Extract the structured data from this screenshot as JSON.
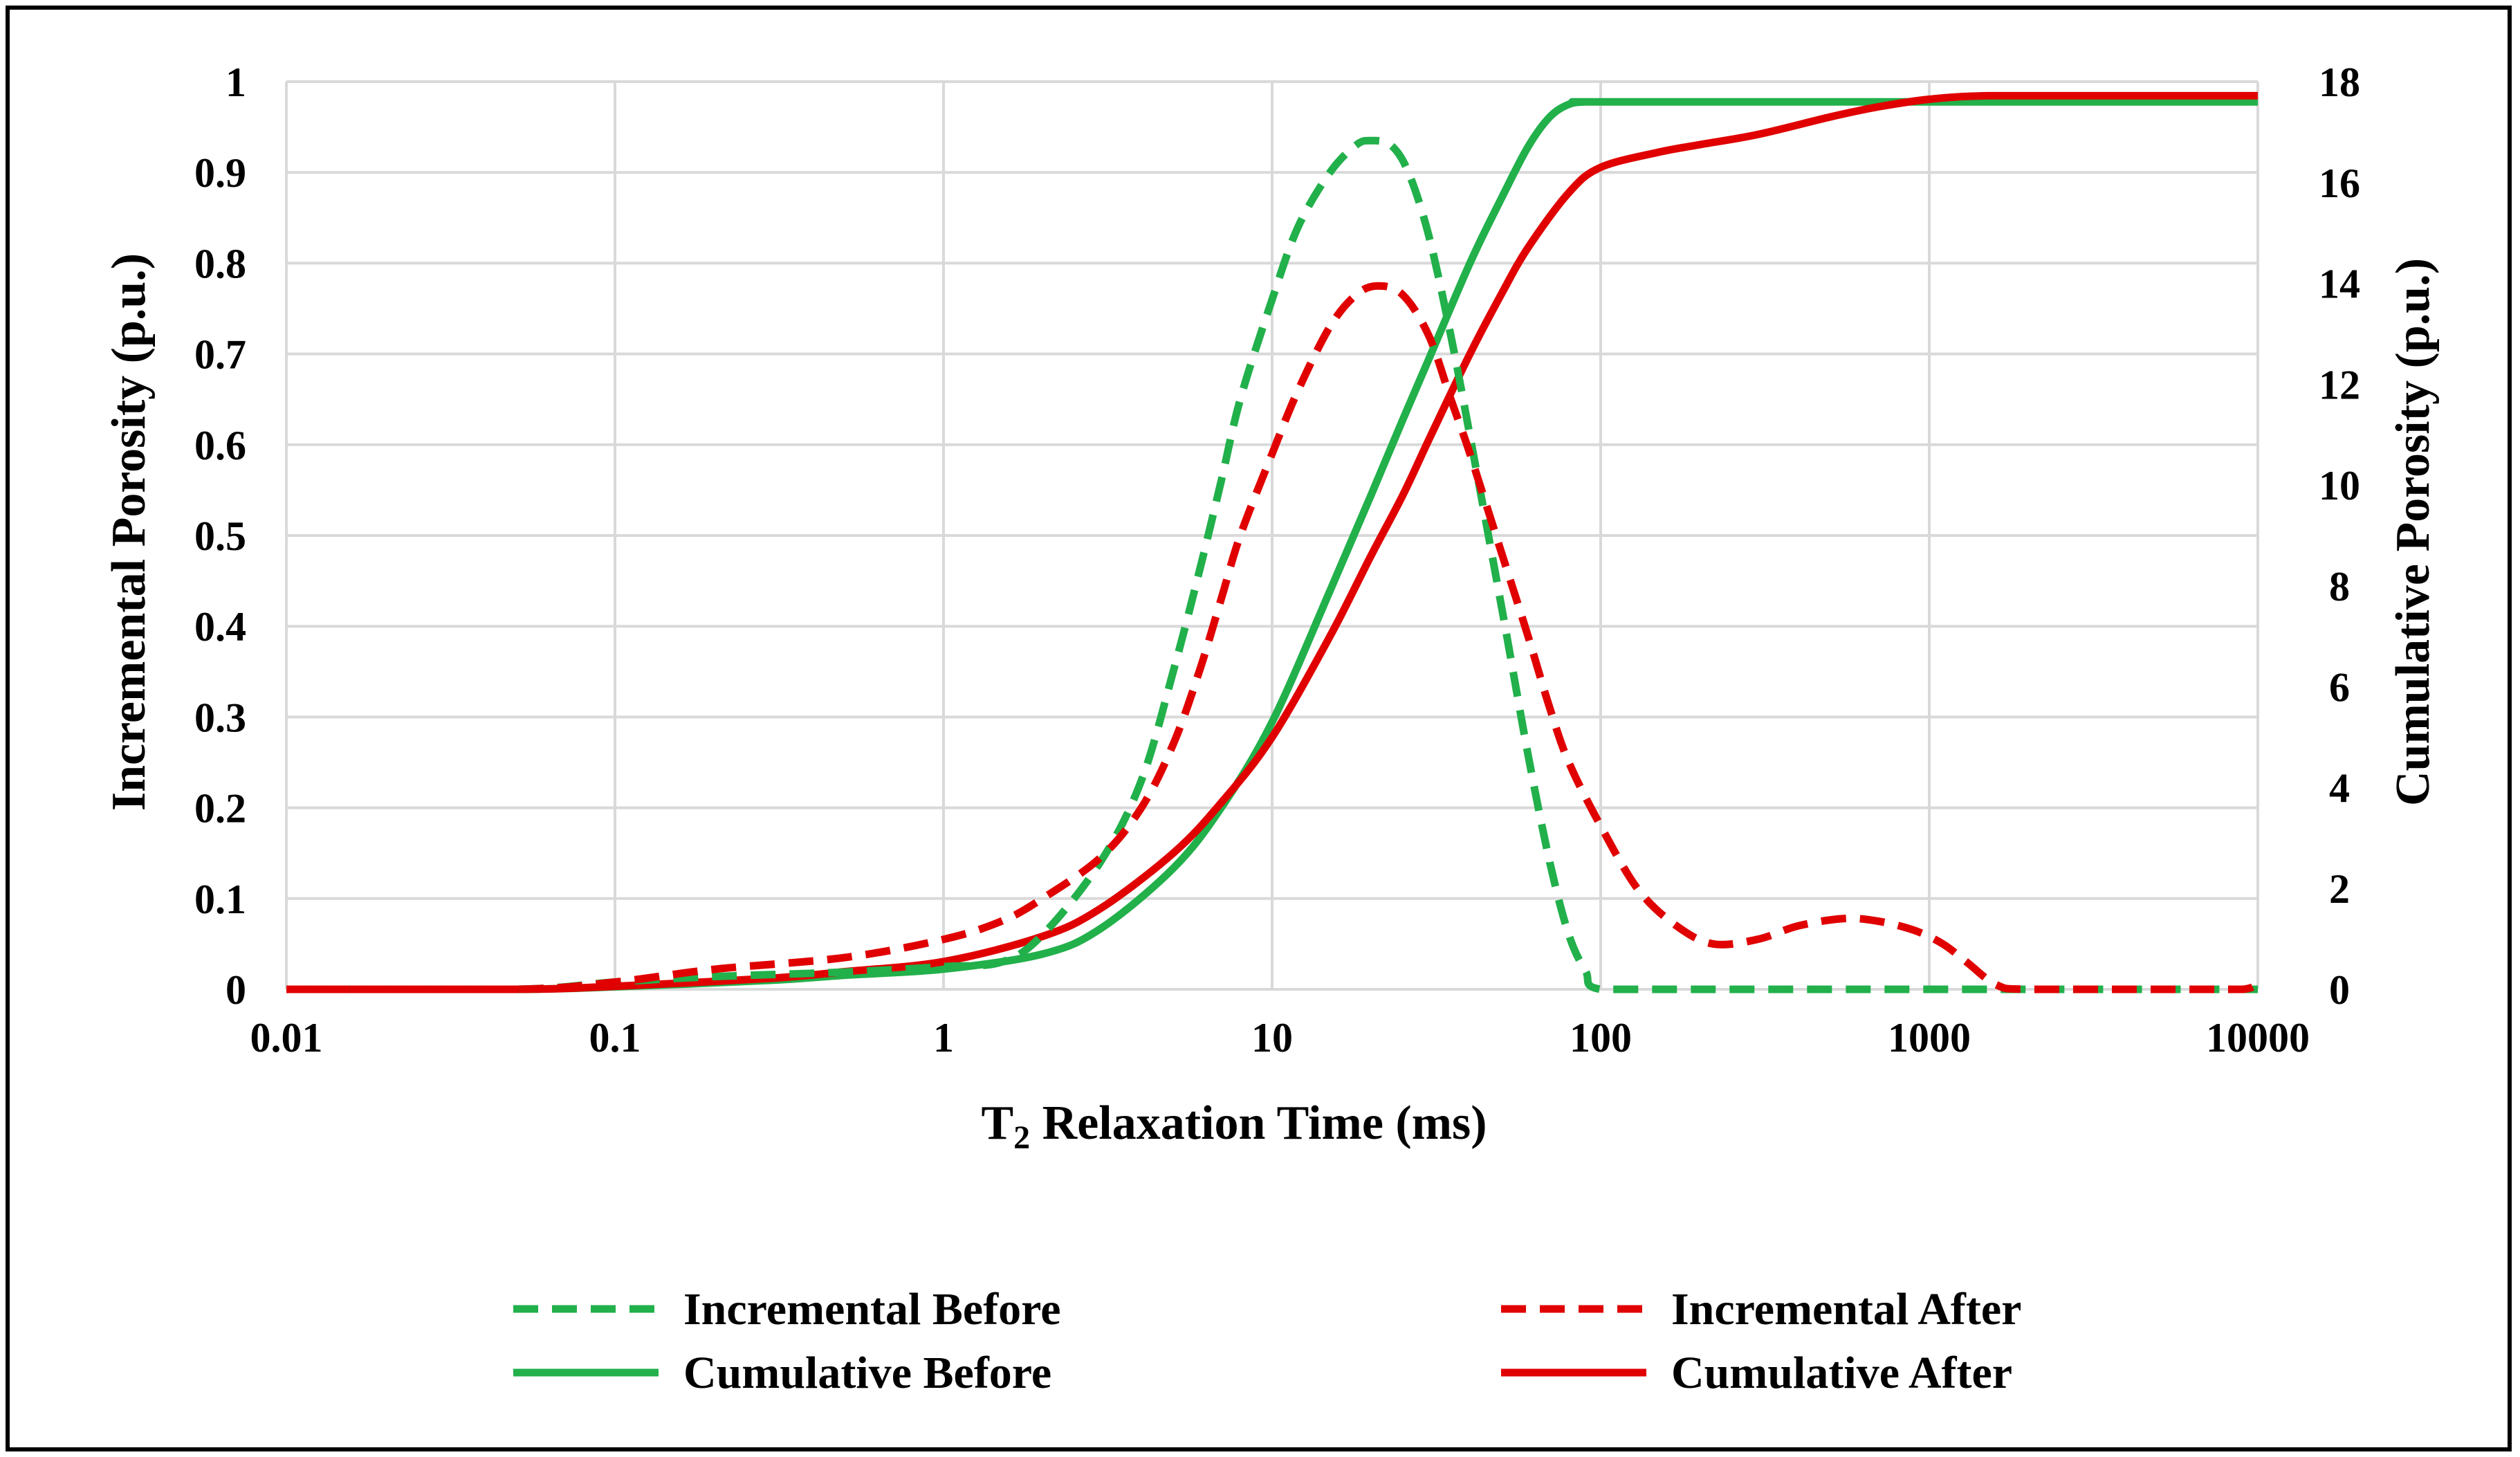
{
  "chart_data": {
    "type": "line",
    "x_scale": "log",
    "xlabel_main": "T",
    "xlabel_sub": "2",
    "xlabel_rest": " Relaxation Time (ms)",
    "ylabel_left": "Incremental Porosity (p.u.)",
    "ylabel_right": "Cumulative Porosity (p.u.)",
    "xlim": [
      0.01,
      10000
    ],
    "ylim_left": [
      0,
      1
    ],
    "ylim_right": [
      0,
      18
    ],
    "grid": true,
    "legend_position": "bottom",
    "x_tick_labels": [
      "0.01",
      "0.1",
      "1",
      "10",
      "100",
      "1000",
      "10000"
    ],
    "y_left_tick_labels": [
      "0",
      "0.1",
      "0.2",
      "0.3",
      "0.4",
      "0.5",
      "0.6",
      "0.7",
      "0.8",
      "0.9",
      "1"
    ],
    "y_right_tick_labels": [
      "0",
      "2",
      "4",
      "6",
      "8",
      "10",
      "12",
      "14",
      "16",
      "18"
    ],
    "series": [
      {
        "name": "Incremental Before",
        "axis": "left",
        "color": "#22b04b",
        "dash": "dashed",
        "points": [
          [
            0.01,
            0
          ],
          [
            0.05,
            0
          ],
          [
            0.1,
            0.008
          ],
          [
            0.2,
            0.014
          ],
          [
            0.5,
            0.019
          ],
          [
            1,
            0.025
          ],
          [
            1.5,
            0.03
          ],
          [
            2,
            0.06
          ],
          [
            3,
            0.14
          ],
          [
            4,
            0.23
          ],
          [
            5,
            0.35
          ],
          [
            6,
            0.46
          ],
          [
            7,
            0.56
          ],
          [
            8,
            0.65
          ],
          [
            10,
            0.76
          ],
          [
            12,
            0.84
          ],
          [
            15,
            0.9
          ],
          [
            18,
            0.93
          ],
          [
            20,
            0.935
          ],
          [
            23,
            0.93
          ],
          [
            26,
            0.9
          ],
          [
            30,
            0.83
          ],
          [
            35,
            0.72
          ],
          [
            40,
            0.61
          ],
          [
            50,
            0.42
          ],
          [
            60,
            0.26
          ],
          [
            70,
            0.14
          ],
          [
            80,
            0.06
          ],
          [
            90,
            0.02
          ],
          [
            100,
            0
          ],
          [
            200,
            0
          ],
          [
            1000,
            0
          ],
          [
            10000,
            0
          ]
        ]
      },
      {
        "name": "Incremental After",
        "axis": "left",
        "color": "#e00000",
        "dash": "dashed",
        "points": [
          [
            0.01,
            0
          ],
          [
            0.05,
            0
          ],
          [
            0.1,
            0.008
          ],
          [
            0.2,
            0.022
          ],
          [
            0.5,
            0.035
          ],
          [
            1,
            0.055
          ],
          [
            1.5,
            0.075
          ],
          [
            2,
            0.1
          ],
          [
            3,
            0.145
          ],
          [
            4,
            0.2
          ],
          [
            5,
            0.27
          ],
          [
            6,
            0.35
          ],
          [
            7,
            0.43
          ],
          [
            8,
            0.5
          ],
          [
            10,
            0.59
          ],
          [
            12,
            0.66
          ],
          [
            15,
            0.73
          ],
          [
            18,
            0.765
          ],
          [
            21,
            0.775
          ],
          [
            25,
            0.765
          ],
          [
            30,
            0.72
          ],
          [
            35,
            0.65
          ],
          [
            40,
            0.59
          ],
          [
            50,
            0.48
          ],
          [
            60,
            0.39
          ],
          [
            70,
            0.31
          ],
          [
            80,
            0.25
          ],
          [
            100,
            0.18
          ],
          [
            130,
            0.11
          ],
          [
            170,
            0.07
          ],
          [
            220,
            0.05
          ],
          [
            300,
            0.055
          ],
          [
            400,
            0.07
          ],
          [
            550,
            0.078
          ],
          [
            700,
            0.075
          ],
          [
            900,
            0.065
          ],
          [
            1100,
            0.05
          ],
          [
            1300,
            0.03
          ],
          [
            1600,
            0.005
          ],
          [
            2000,
            0
          ],
          [
            5000,
            0
          ],
          [
            9000,
            0
          ],
          [
            10000,
            0.01
          ]
        ]
      },
      {
        "name": "Cumulative Before",
        "axis": "right",
        "color": "#22b04b",
        "dash": "solid",
        "points": [
          [
            0.01,
            0
          ],
          [
            0.05,
            0
          ],
          [
            0.1,
            0.05
          ],
          [
            0.3,
            0.18
          ],
          [
            0.5,
            0.28
          ],
          [
            1,
            0.4
          ],
          [
            2,
            0.7
          ],
          [
            3,
            1.2
          ],
          [
            5,
            2.4
          ],
          [
            7,
            3.6
          ],
          [
            10,
            5.3
          ],
          [
            15,
            7.9
          ],
          [
            20,
            9.8
          ],
          [
            25,
            11.3
          ],
          [
            30,
            12.5
          ],
          [
            40,
            14.4
          ],
          [
            50,
            15.7
          ],
          [
            60,
            16.7
          ],
          [
            70,
            17.3
          ],
          [
            80,
            17.55
          ],
          [
            90,
            17.6
          ],
          [
            100,
            17.6
          ],
          [
            1000,
            17.6
          ],
          [
            10000,
            17.6
          ]
        ]
      },
      {
        "name": "Cumulative After",
        "axis": "right",
        "color": "#e00000",
        "dash": "solid",
        "points": [
          [
            0.01,
            0
          ],
          [
            0.05,
            0
          ],
          [
            0.1,
            0.06
          ],
          [
            0.3,
            0.22
          ],
          [
            0.5,
            0.35
          ],
          [
            1,
            0.55
          ],
          [
            2,
            1.05
          ],
          [
            3,
            1.6
          ],
          [
            5,
            2.7
          ],
          [
            7,
            3.7
          ],
          [
            10,
            5.0
          ],
          [
            15,
            7.0
          ],
          [
            20,
            8.6
          ],
          [
            25,
            9.8
          ],
          [
            30,
            10.9
          ],
          [
            40,
            12.6
          ],
          [
            50,
            13.8
          ],
          [
            60,
            14.7
          ],
          [
            80,
            15.8
          ],
          [
            100,
            16.3
          ],
          [
            150,
            16.6
          ],
          [
            200,
            16.75
          ],
          [
            300,
            16.95
          ],
          [
            500,
            17.3
          ],
          [
            700,
            17.5
          ],
          [
            1000,
            17.65
          ],
          [
            1500,
            17.72
          ],
          [
            3000,
            17.72
          ],
          [
            10000,
            17.72
          ]
        ]
      }
    ]
  }
}
